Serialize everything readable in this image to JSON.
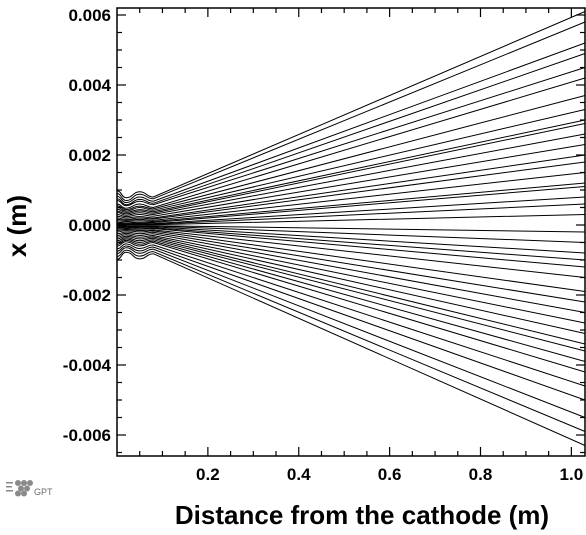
{
  "chart_data": {
    "type": "line",
    "title": "",
    "xlabel": "Distance from the cathode (m)",
    "ylabel": "x (m)",
    "xlim": [
      0.0,
      1.03
    ],
    "ylim": [
      -0.0066,
      0.0062
    ],
    "x_ticks": [
      0.2,
      0.4,
      0.6,
      0.8,
      1.0
    ],
    "x_tick_labels": [
      "0.2",
      "0.4",
      "0.6",
      "0.8",
      "1.0"
    ],
    "y_ticks": [
      0.006,
      0.004,
      0.002,
      0.0,
      -0.002,
      -0.004,
      -0.006
    ],
    "y_tick_labels": [
      "0.006",
      "0.004",
      "0.002",
      "0.000",
      "-0.002",
      "-0.004",
      "-0.006"
    ],
    "grid": false,
    "legend": "none",
    "line_color": "#000000",
    "trajectory_sample_x": [
      0.0,
      0.02,
      0.05,
      0.08,
      1.03
    ],
    "note_trajectories": "electron trajectories: x position at each sample distance",
    "series": [
      {
        "values": [
          0.00098,
          0.00078,
          0.00095,
          0.0008,
          0.0061
        ]
      },
      {
        "values": [
          0.0009,
          0.0007,
          0.00088,
          0.00075,
          0.0058
        ]
      },
      {
        "values": [
          0.00082,
          0.00064,
          0.0008,
          0.00068,
          0.0052
        ]
      },
      {
        "values": [
          0.00075,
          0.00058,
          0.00073,
          0.00062,
          0.0049
        ]
      },
      {
        "values": [
          0.0007,
          0.00055,
          0.00068,
          0.00058,
          0.0045
        ]
      },
      {
        "values": [
          0.0006,
          0.00048,
          0.0006,
          0.0005,
          0.0042
        ]
      },
      {
        "values": [
          0.00055,
          0.00044,
          0.00054,
          0.00046,
          0.0037
        ]
      },
      {
        "values": [
          0.0005,
          0.0004,
          0.0005,
          0.00042,
          0.0033
        ]
      },
      {
        "values": [
          0.00045,
          0.00036,
          0.00044,
          0.00038,
          0.003
        ]
      },
      {
        "values": [
          0.0004,
          0.00032,
          0.0004,
          0.00034,
          0.0029
        ]
      },
      {
        "values": [
          0.00036,
          0.00028,
          0.00035,
          0.0003,
          0.0026
        ]
      },
      {
        "values": [
          0.0003,
          0.00024,
          0.0003,
          0.00025,
          0.0023
        ]
      },
      {
        "values": [
          0.00025,
          0.0002,
          0.00024,
          0.0002,
          0.002
        ]
      },
      {
        "values": [
          0.0002,
          0.00016,
          0.0002,
          0.00017,
          0.0018
        ]
      },
      {
        "values": [
          0.00016,
          0.00013,
          0.00016,
          0.00013,
          0.0015
        ]
      },
      {
        "values": [
          0.00012,
          0.0001,
          0.00012,
          0.0001,
          0.0012
        ]
      },
      {
        "values": [
          8e-05,
          6e-05,
          8e-05,
          7e-05,
          0.0011
        ]
      },
      {
        "values": [
          5e-05,
          4e-05,
          5e-05,
          4e-05,
          0.0008
        ]
      },
      {
        "values": [
          3e-05,
          2e-05,
          3e-05,
          2e-05,
          0.0006
        ]
      },
      {
        "values": [
          1e-05,
          1e-05,
          1e-05,
          1e-05,
          0.0003
        ]
      },
      {
        "values": [
          -2e-05,
          -2e-05,
          -2e-05,
          -2e-05,
          -0.0002
        ]
      },
      {
        "values": [
          -4e-05,
          -3e-05,
          -4e-05,
          -3e-05,
          -0.0005
        ]
      },
      {
        "values": [
          -6e-05,
          -5e-05,
          -6e-05,
          -5e-05,
          -0.0008
        ]
      },
      {
        "values": [
          -9e-05,
          -7e-05,
          -9e-05,
          -8e-05,
          -0.001
        ]
      },
      {
        "values": [
          -0.00012,
          -0.0001,
          -0.00012,
          -0.0001,
          -0.0012
        ]
      },
      {
        "values": [
          -0.00016,
          -0.00013,
          -0.00016,
          -0.00014,
          -0.0015
        ]
      },
      {
        "values": [
          -0.0002,
          -0.00016,
          -0.0002,
          -0.00017,
          -0.0019
        ]
      },
      {
        "values": [
          -0.00025,
          -0.0002,
          -0.00025,
          -0.00021,
          -0.0022
        ]
      },
      {
        "values": [
          -0.0003,
          -0.00024,
          -0.0003,
          -0.00025,
          -0.0025
        ]
      },
      {
        "values": [
          -0.00035,
          -0.00028,
          -0.00035,
          -0.0003,
          -0.0028
        ]
      },
      {
        "values": [
          -0.0004,
          -0.00032,
          -0.0004,
          -0.00034,
          -0.0031
        ]
      },
      {
        "values": [
          -0.00045,
          -0.00036,
          -0.00045,
          -0.00038,
          -0.0034
        ]
      },
      {
        "values": [
          -0.0005,
          -0.0004,
          -0.0005,
          -0.00042,
          -0.0036
        ]
      },
      {
        "values": [
          -0.00055,
          -0.00044,
          -0.00055,
          -0.00046,
          -0.0039
        ]
      },
      {
        "values": [
          -0.0006,
          -0.00048,
          -0.0006,
          -0.0005,
          -0.0042
        ]
      },
      {
        "values": [
          -0.00068,
          -0.00054,
          -0.00067,
          -0.00057,
          -0.0046
        ]
      },
      {
        "values": [
          -0.00075,
          -0.0006,
          -0.00074,
          -0.00063,
          -0.005
        ]
      },
      {
        "values": [
          -0.00082,
          -0.00065,
          -0.00081,
          -0.00069,
          -0.0055
        ]
      },
      {
        "values": [
          -0.0009,
          -0.00072,
          -0.00089,
          -0.00076,
          -0.0059
        ]
      },
      {
        "values": [
          -0.00098,
          -0.00078,
          -0.00097,
          -0.00082,
          -0.0063
        ]
      }
    ]
  },
  "logo": {
    "text": "GPT"
  }
}
